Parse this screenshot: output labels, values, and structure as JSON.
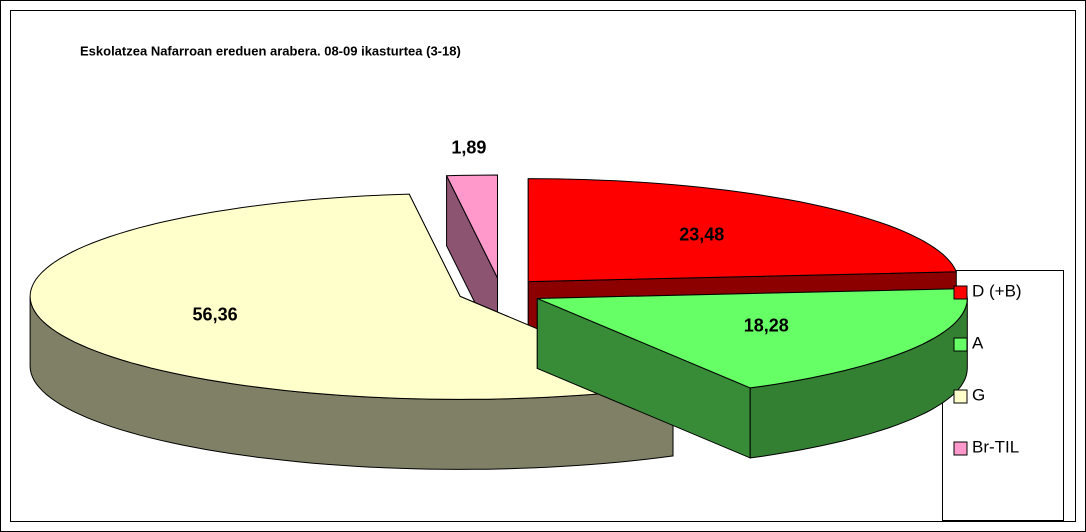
{
  "chart_data": {
    "type": "pie3d",
    "title": "Eskolatzea Nafarroan ereduen arabera. 08-09 ikasturtea (3-18)",
    "categories": [
      "D (+B)",
      "A",
      "G",
      "Br-TIL"
    ],
    "values": [
      23.48,
      18.28,
      56.36,
      1.89
    ],
    "value_labels": [
      "23,48",
      "18,28",
      "56,36",
      "1,89"
    ],
    "colors": [
      "#ff0000",
      "#66ff66",
      "#ffffcc",
      "#ff99cc"
    ],
    "legend": "right"
  }
}
